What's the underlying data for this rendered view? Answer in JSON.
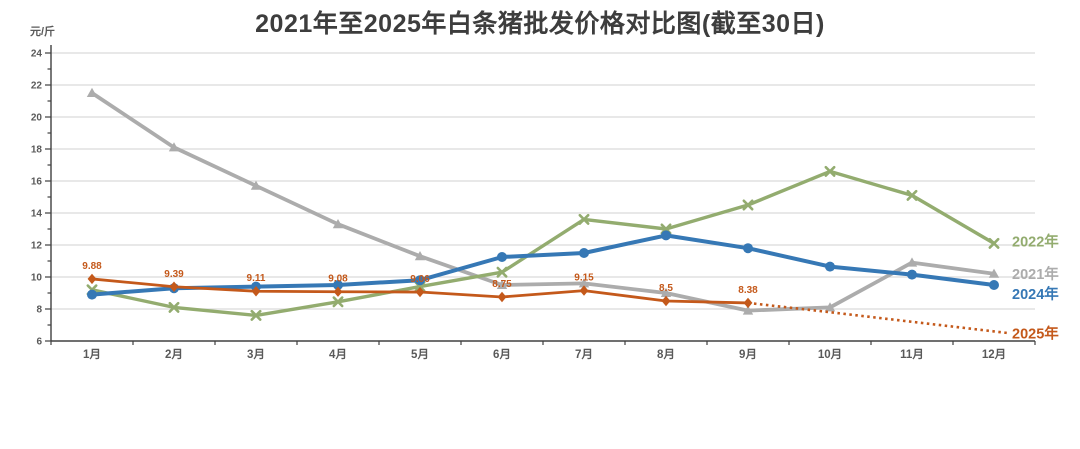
{
  "chart_data": {
    "type": "line",
    "title": "2021年至2025年白条猪批发价格对比图(截至30日)",
    "ylabel": "元/斤",
    "xlabel": "",
    "ylim": [
      6,
      24
    ],
    "ytick_step": 2,
    "grid": true,
    "legend_position": "right-at-line-end",
    "categories": [
      "1月",
      "2月",
      "3月",
      "4月",
      "5月",
      "6月",
      "7月",
      "8月",
      "9月",
      "10月",
      "11月",
      "12月"
    ],
    "series": [
      {
        "name": "2021年",
        "color": "#ACACAC",
        "marker": "triangle",
        "legend_dy": 0,
        "values": [
          21.5,
          18.1,
          15.7,
          13.3,
          11.3,
          9.5,
          9.6,
          9.0,
          7.9,
          8.1,
          10.9,
          10.2
        ]
      },
      {
        "name": "2022年",
        "color": "#93AC6F",
        "marker": "x",
        "legend_dy": -2,
        "values": [
          9.2,
          8.1,
          7.6,
          8.45,
          9.4,
          10.3,
          13.6,
          13.0,
          14.5,
          16.6,
          15.1,
          12.1
        ]
      },
      {
        "name": "2024年",
        "color": "#3678B5",
        "marker": "circle",
        "legend_dy": 9,
        "values": [
          8.9,
          9.3,
          9.4,
          9.5,
          9.8,
          11.25,
          11.5,
          12.6,
          11.8,
          10.65,
          10.15,
          9.5
        ]
      },
      {
        "name": "2025年",
        "color": "#C4591B",
        "marker": "diamond",
        "legend_dy": 2,
        "values": [
          9.88,
          9.39,
          9.11,
          9.08,
          9.06,
          8.75,
          9.15,
          8.5,
          8.38
        ],
        "data_labels": [
          "9.88",
          "9.39",
          "9.11",
          "9.08",
          "9.06",
          "8.75",
          "9.15",
          "8.5",
          "8.38"
        ],
        "projection": {
          "style": "dotted",
          "start_index": 8,
          "values": [
            8.38,
            7.8,
            7.2,
            6.6
          ]
        }
      }
    ],
    "colors": {
      "title_text": "#3d3d3d",
      "axis_text": "#595959",
      "axis_line": "#404040",
      "gridline": "#d9d9d9",
      "background": "#ffffff"
    }
  }
}
